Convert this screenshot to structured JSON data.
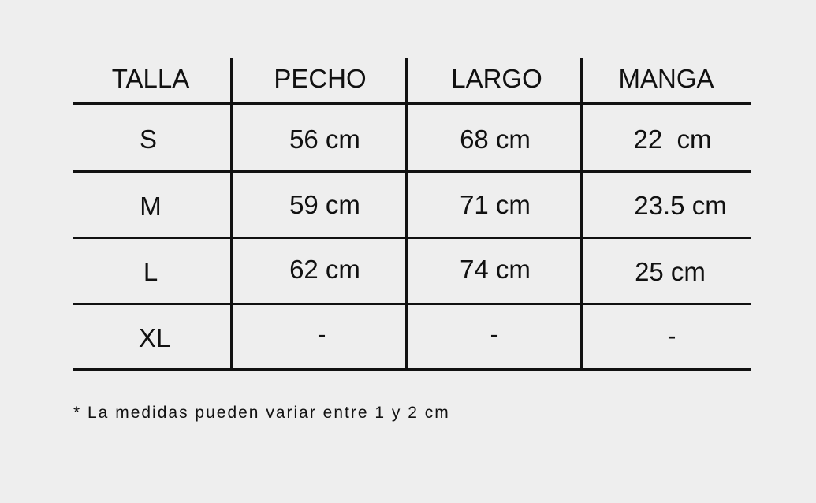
{
  "table": {
    "headers": [
      "TALLA",
      "PECHO",
      "LARGO",
      "MANGA"
    ],
    "rows": [
      [
        "S",
        "56 cm",
        "68 cm",
        "22  cm"
      ],
      [
        "M",
        "59 cm",
        "71 cm",
        "23.5 cm"
      ],
      [
        "L",
        "62 cm",
        "74 cm",
        "25 cm"
      ],
      [
        "XL",
        "-",
        "-",
        "-"
      ]
    ]
  },
  "footnote": "* La medidas pueden variar entre 1 y 2 cm"
}
